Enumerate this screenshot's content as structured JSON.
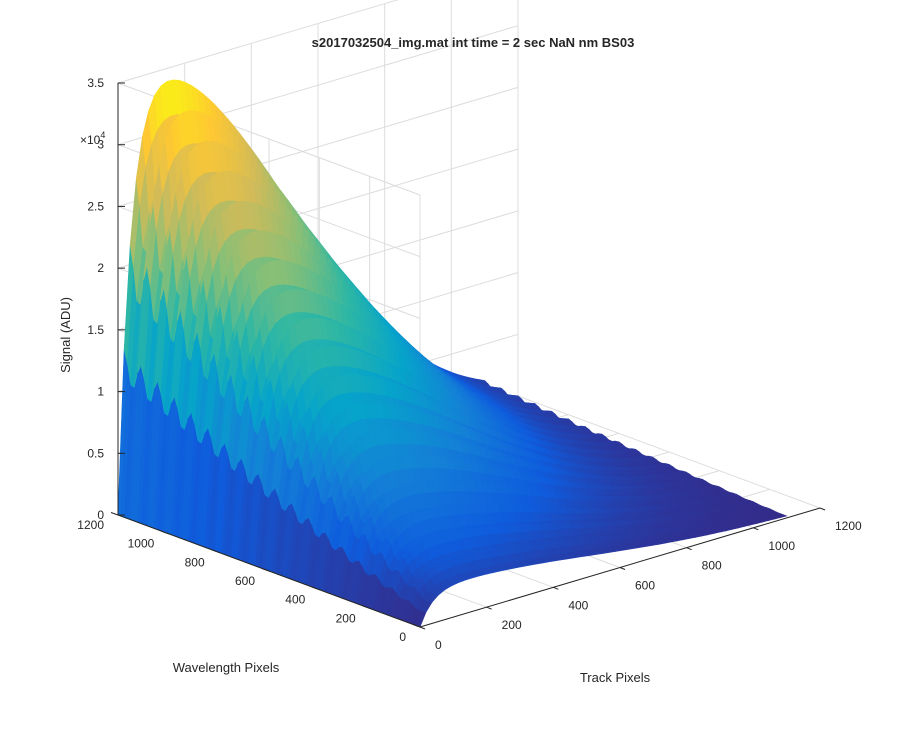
{
  "chart_data": {
    "type": "surface",
    "title": "s2017032504_img.mat int time = 2 sec  NaN nm BS03",
    "xlabel": "Track Pixels",
    "ylabel": "Wavelength Pixels",
    "zlabel": "Signal (ADU)",
    "z_exponent_label": "×10",
    "z_exponent_power": "4",
    "x_ticks": [
      "0",
      "200",
      "400",
      "600",
      "800",
      "1000",
      "1200"
    ],
    "y_ticks": [
      "0",
      "200",
      "400",
      "600",
      "800",
      "1000",
      "1200"
    ],
    "z_ticks": [
      "0",
      "0.5",
      "1",
      "1.5",
      "2",
      "2.5",
      "3",
      "3.5"
    ],
    "xlim": [
      0,
      1200
    ],
    "ylim": [
      0,
      1200
    ],
    "zlim": [
      0,
      35000
    ],
    "grid": true,
    "colormap": "parula",
    "colormap_stops": [
      "#352a87",
      "#0f5cdd",
      "#1481d6",
      "#06a4ca",
      "#2eb7a4",
      "#87bf77",
      "#d1bb59",
      "#fec832",
      "#f9fb0e"
    ],
    "surface_summary": {
      "peak_value_adu": 34000,
      "peak_track_pixel": 300,
      "peak_wavelength_pixel": 1150,
      "ripple_count": 18,
      "signal_nonzero_wavelength_range": [
        0,
        1200
      ],
      "signal_track_range": [
        0,
        1100
      ]
    }
  }
}
